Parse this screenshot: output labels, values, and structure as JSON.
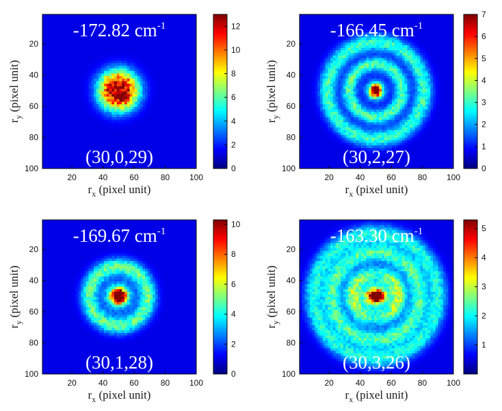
{
  "chart_data": [
    {
      "type": "heatmap",
      "title": "-172.82 cm-1",
      "energy_value": "-172.82 cm",
      "energy_exp": "-1",
      "quantum_numbers": "(30,0,29)",
      "xlabel_main": "r",
      "xlabel_sub": "x",
      "xlabel_rest": " (pixel unit)",
      "ylabel_main": "r",
      "ylabel_sub": "y",
      "ylabel_rest": " (pixel unit)",
      "xlim": [
        1,
        100
      ],
      "ylim": [
        1,
        100
      ],
      "xticks": [
        "20",
        "40",
        "60",
        "80",
        "100"
      ],
      "yticks": [
        "20",
        "40",
        "60",
        "80",
        "100"
      ],
      "colorbar_ticks": [
        "0",
        "2",
        "4",
        "6",
        "8",
        "10",
        "12"
      ],
      "colorbar_range": [
        0,
        13
      ],
      "center": [
        50,
        50
      ],
      "peak": 12.5,
      "pattern": "gaussian-disk",
      "rings": 0
    },
    {
      "type": "heatmap",
      "title": "-166.45 cm-1",
      "energy_value": "-166.45 cm",
      "energy_exp": "-1",
      "quantum_numbers": "(30,2,27)",
      "xlabel_main": "r",
      "xlabel_sub": "x",
      "xlabel_rest": " (pixel unit)",
      "ylabel_main": "r",
      "ylabel_sub": "y",
      "ylabel_rest": " (pixel unit)",
      "xlim": [
        1,
        100
      ],
      "ylim": [
        1,
        100
      ],
      "xticks": [
        "20",
        "40",
        "60",
        "80",
        "100"
      ],
      "yticks": [
        "20",
        "40",
        "60",
        "80",
        "100"
      ],
      "colorbar_ticks": [
        "0",
        "1",
        "2",
        "3",
        "4",
        "5",
        "6",
        "7"
      ],
      "colorbar_range": [
        0,
        7
      ],
      "center": [
        50,
        50
      ],
      "peak": 7,
      "pattern": "rings",
      "rings": 2
    },
    {
      "type": "heatmap",
      "title": "-169.67 cm-1",
      "energy_value": "-169.67 cm",
      "energy_exp": "-1",
      "quantum_numbers": "(30,1,28)",
      "xlabel_main": "r",
      "xlabel_sub": "x",
      "xlabel_rest": " (pixel unit)",
      "ylabel_main": "r",
      "ylabel_sub": "y",
      "ylabel_rest": " (pixel unit)",
      "xlim": [
        1,
        100
      ],
      "ylim": [
        1,
        100
      ],
      "xticks": [
        "20",
        "40",
        "60",
        "80",
        "100"
      ],
      "yticks": [
        "20",
        "40",
        "60",
        "80",
        "100"
      ],
      "colorbar_ticks": [
        "0",
        "2",
        "4",
        "6",
        "8",
        "10"
      ],
      "colorbar_range": [
        0,
        10.3
      ],
      "center": [
        50,
        50
      ],
      "peak": 10,
      "pattern": "rings",
      "rings": 1
    },
    {
      "type": "heatmap",
      "title": "-163.30 cm-1",
      "energy_value": "-163.30 cm",
      "energy_exp": "-1",
      "quantum_numbers": "(30,3,26)",
      "xlabel_main": "r",
      "xlabel_sub": "x",
      "xlabel_rest": " (pixel unit)",
      "ylabel_main": "r",
      "ylabel_sub": "y",
      "ylabel_rest": " (pixel unit)",
      "xlim": [
        1,
        100
      ],
      "ylim": [
        1,
        100
      ],
      "xticks": [
        "20",
        "40",
        "60",
        "80",
        "100"
      ],
      "yticks": [
        "20",
        "40",
        "60",
        "80",
        "100"
      ],
      "colorbar_ticks": [
        "1",
        "2",
        "3",
        "4",
        "5"
      ],
      "colorbar_range": [
        0,
        5.3
      ],
      "center": [
        50,
        50
      ],
      "peak": 5.2,
      "pattern": "rings",
      "rings": 3
    }
  ],
  "colormap": "jet",
  "colors": {
    "background": "#00008f",
    "axis": "#000000"
  }
}
